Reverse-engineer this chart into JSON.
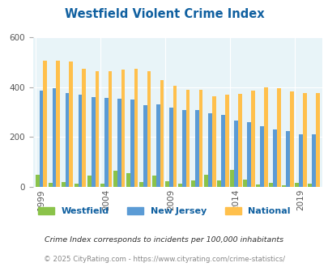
{
  "title": "Westfield Violent Crime Index",
  "years": [
    1999,
    2000,
    2001,
    2002,
    2003,
    2004,
    2005,
    2006,
    2007,
    2008,
    2009,
    2010,
    2011,
    2012,
    2013,
    2014,
    2015,
    2016,
    2017,
    2018,
    2019,
    2020
  ],
  "westfield": [
    48,
    15,
    18,
    12,
    45,
    12,
    65,
    55,
    20,
    45,
    22,
    12,
    26,
    48,
    25,
    68,
    30,
    10,
    15,
    5,
    15,
    14
  ],
  "new_jersey": [
    385,
    395,
    375,
    370,
    362,
    358,
    355,
    350,
    328,
    330,
    318,
    310,
    310,
    295,
    290,
    265,
    260,
    245,
    230,
    225,
    210,
    212
  ],
  "national": [
    508,
    508,
    502,
    475,
    465,
    463,
    470,
    475,
    465,
    428,
    405,
    390,
    391,
    365,
    370,
    373,
    385,
    400,
    395,
    382,
    375,
    378
  ],
  "ylim": [
    0,
    600
  ],
  "yticks": [
    0,
    200,
    400,
    600
  ],
  "bar_colors": [
    "#8bc34a",
    "#5b9bd5",
    "#ffc04c"
  ],
  "bg_color": "#e8f4f8",
  "outer_bg": "#ffffff",
  "grid_color": "#ffffff",
  "title_color": "#1060a0",
  "legend_labels": [
    "Westfield",
    "New Jersey",
    "National"
  ],
  "legend_label_color": "#1060a0",
  "tick_years": [
    1999,
    2004,
    2009,
    2014,
    2019
  ],
  "footnote1": "Crime Index corresponds to incidents per 100,000 inhabitants",
  "footnote2": "© 2025 CityRating.com - https://www.cityrating.com/crime-statistics/",
  "footnote_color1": "#333333",
  "footnote_color2": "#888888"
}
